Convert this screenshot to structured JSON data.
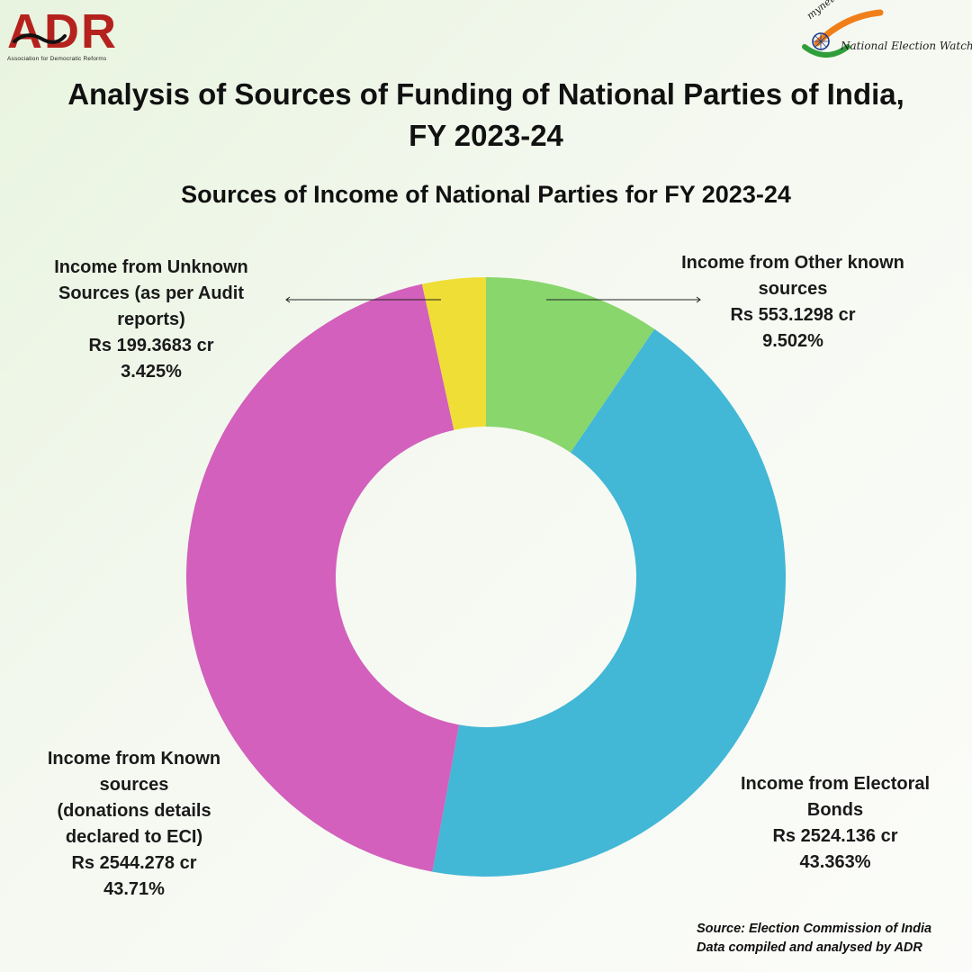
{
  "header": {
    "adr_logo_text": "ADR",
    "adr_logo_subtext": "Association for Democratic Reforms",
    "myneta_logo_text": "myneta.info",
    "new_logo_text": "National Election Watch"
  },
  "title_line1": "Analysis of Sources of Funding of National Parties of India,",
  "title_line2": "FY 2023-24",
  "colors": {
    "other_known": "#88d66c",
    "electoral_bonds": "#42b7d6",
    "known": "#d260bc",
    "unknown": "#efde35",
    "adr_red": "#b5221e"
  },
  "chart_data": {
    "type": "pie",
    "variant": "donut",
    "title": "Sources of Income of National Parties for FY 2023-24",
    "unit": "Rs cr",
    "slices": [
      {
        "key": "other_known",
        "label_lines": [
          "Income from Other known",
          "sources"
        ],
        "amount_text": "Rs 553.1298 cr",
        "percent_text": "9.502%",
        "value": 553.1298,
        "percent": 9.502
      },
      {
        "key": "electoral_bonds",
        "label_lines": [
          "Income from Electoral",
          "Bonds"
        ],
        "amount_text": "Rs 2524.136 cr",
        "percent_text": "43.363%",
        "value": 2524.136,
        "percent": 43.363
      },
      {
        "key": "known",
        "label_lines": [
          "Income from Known",
          "sources",
          "(donations details",
          "declared to ECI)"
        ],
        "amount_text": "Rs 2544.278 cr",
        "percent_text": "43.71%",
        "value": 2544.278,
        "percent": 43.71
      },
      {
        "key": "unknown",
        "label_lines": [
          "Income from Unknown",
          "Sources (as per Audit",
          "reports)"
        ],
        "amount_text": "Rs 199.3683 cr",
        "percent_text": "3.425%",
        "value": 199.3683,
        "percent": 3.425
      }
    ]
  },
  "source_line1": "Source: Election Commission of India",
  "source_line2": "Data compiled and analysed by ADR"
}
